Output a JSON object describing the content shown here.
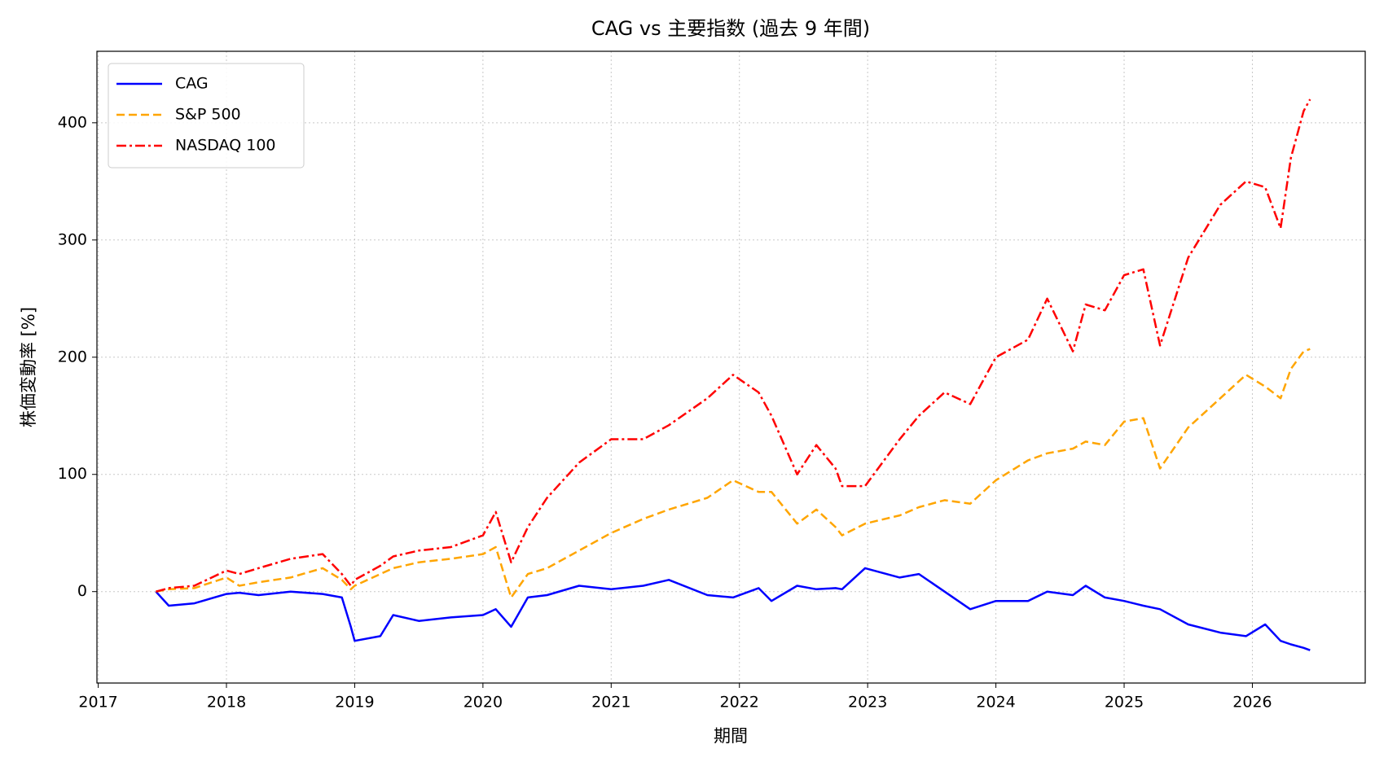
{
  "chart_data": {
    "type": "line",
    "title": "CAG vs 主要指数 (過去 9 年間)",
    "x_label": "期間",
    "y_label": "株価変動率 [%]",
    "x": [
      2017.45,
      2017.55,
      2017.75,
      2018.0,
      2018.1,
      2018.25,
      2018.5,
      2018.75,
      2018.9,
      2018.97,
      2019.0,
      2019.2,
      2019.3,
      2019.5,
      2019.75,
      2020.0,
      2020.1,
      2020.22,
      2020.35,
      2020.5,
      2020.75,
      2021.0,
      2021.25,
      2021.45,
      2021.75,
      2021.95,
      2022.15,
      2022.25,
      2022.45,
      2022.6,
      2022.75,
      2022.8,
      2022.98,
      2023.25,
      2023.4,
      2023.6,
      2023.8,
      2024.0,
      2024.25,
      2024.4,
      2024.6,
      2024.7,
      2024.85,
      2025.0,
      2025.15,
      2025.28,
      2025.5,
      2025.75,
      2025.95,
      2026.1,
      2026.22,
      2026.3,
      2026.4,
      2026.45
    ],
    "series": [
      {
        "name": "CAG",
        "color": "#0000ff",
        "linestyle": "solid",
        "values": [
          0,
          -12,
          -10,
          -2,
          -1,
          -3,
          0,
          -2,
          -5,
          -30,
          -42,
          -38,
          -20,
          -25,
          -22,
          -20,
          -15,
          -30,
          -5,
          -3,
          5,
          2,
          5,
          10,
          -3,
          -5,
          3,
          -8,
          5,
          2,
          3,
          2,
          20,
          12,
          15,
          0,
          -15,
          -8,
          -8,
          0,
          -3,
          5,
          -5,
          -8,
          -12,
          -15,
          -28,
          -35,
          -38,
          -28,
          -42,
          -45,
          -48,
          -50
        ]
      },
      {
        "name": "S&P 500",
        "color": "#ffa500",
        "linestyle": "dashed",
        "values": [
          0,
          2,
          3,
          12,
          5,
          8,
          12,
          20,
          10,
          2,
          5,
          15,
          20,
          25,
          28,
          32,
          38,
          -5,
          15,
          20,
          35,
          50,
          62,
          70,
          80,
          95,
          85,
          85,
          58,
          70,
          55,
          48,
          58,
          65,
          72,
          78,
          75,
          95,
          112,
          118,
          122,
          128,
          125,
          145,
          148,
          105,
          140,
          165,
          185,
          175,
          165,
          190,
          205,
          207
        ]
      },
      {
        "name": "NASDAQ 100",
        "color": "#ff0000",
        "linestyle": "dashdot",
        "values": [
          0,
          3,
          5,
          18,
          15,
          20,
          28,
          32,
          15,
          5,
          10,
          22,
          30,
          35,
          38,
          48,
          68,
          25,
          55,
          80,
          110,
          130,
          130,
          142,
          165,
          185,
          170,
          150,
          100,
          125,
          105,
          90,
          90,
          130,
          150,
          170,
          160,
          200,
          215,
          250,
          205,
          245,
          240,
          270,
          275,
          210,
          285,
          330,
          350,
          345,
          310,
          370,
          410,
          420
        ]
      }
    ],
    "xlim": [
      2016.99,
      2026.88
    ],
    "xticks": [
      2017,
      2018,
      2019,
      2020,
      2021,
      2022,
      2023,
      2024,
      2025,
      2026
    ],
    "ylim": [
      -78,
      461
    ],
    "yticks": [
      0,
      100,
      200,
      300,
      400
    ],
    "grid": true,
    "legend": "upper-left"
  }
}
